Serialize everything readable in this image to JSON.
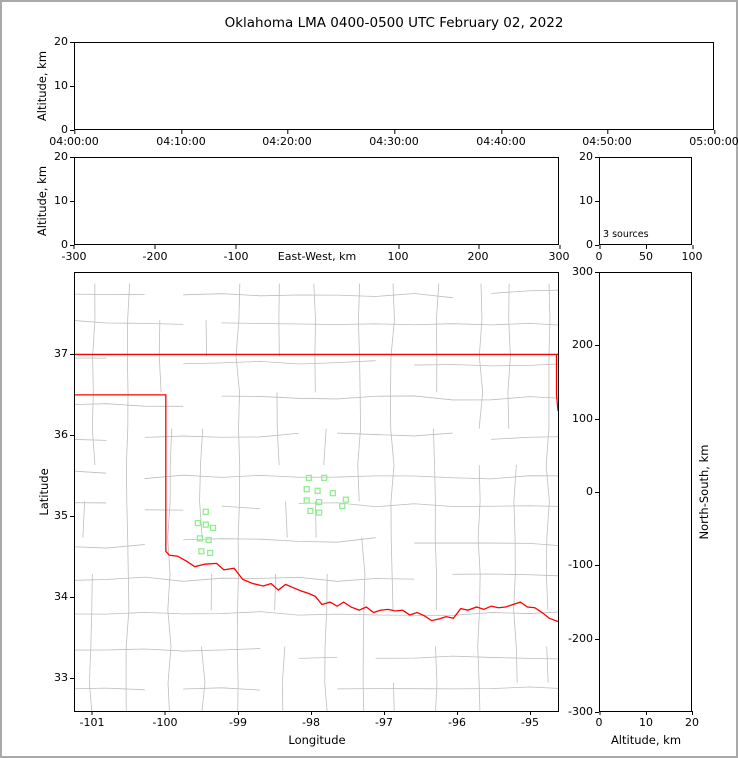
{
  "title": "Oklahoma LMA 0400-0500 UTC February 02, 2022",
  "panels": {
    "time_height": {
      "ylabel": "Altitude, km",
      "yticks": [
        "20",
        "10",
        "0"
      ],
      "xticks": [
        "04:00:00",
        "04:10:00",
        "04:20:00",
        "04:30:00",
        "04:40:00",
        "04:50:00",
        "05:00:00"
      ]
    },
    "ew_height": {
      "ylabel": "Altitude, km",
      "yticks": [
        "20",
        "10",
        "0"
      ],
      "xlabel": "East-West, km",
      "xticks": [
        "-300",
        "-200",
        "-100",
        "100",
        "200",
        "300"
      ]
    },
    "histogram": {
      "yticks": [
        "20",
        "10",
        "0"
      ],
      "xticks": [
        "0",
        "50",
        "100"
      ],
      "annotation": "3 sources"
    },
    "map": {
      "ylabel": "Latitude",
      "xlabel": "Longitude",
      "yticks": [
        "37",
        "36",
        "35",
        "34",
        "33"
      ],
      "xticks": [
        "-101",
        "-100",
        "-99",
        "-98",
        "-97",
        "-96",
        "-95"
      ]
    },
    "ns_height": {
      "yticks": [
        "300",
        "200",
        "100",
        "0",
        "-100",
        "-200",
        "-300"
      ],
      "xlabel": "Altitude, km",
      "xticks": [
        "0",
        "10",
        "20"
      ],
      "right_label": "North-South, km"
    }
  },
  "colors": {
    "state_border": "#ff0000",
    "county_lines": "#bdbdbd",
    "station_marker": "#90EE90",
    "axes": "#000000"
  },
  "chart_data": {
    "type": "scatter",
    "title": "Oklahoma LMA 0400-0500 UTC February 02, 2022",
    "panels": [
      {
        "id": "time_height",
        "xlim": [
          "04:00:00",
          "05:00:00"
        ],
        "x_ticks": [
          "04:00:00",
          "04:10:00",
          "04:20:00",
          "04:30:00",
          "04:40:00",
          "04:50:00",
          "05:00:00"
        ],
        "ylabel": "Altitude, km",
        "ylim": [
          0,
          20
        ],
        "points": []
      },
      {
        "id": "ew_height",
        "xlabel": "East-West, km",
        "xlim": [
          -300,
          300
        ],
        "ylabel": "Altitude, km",
        "ylim": [
          0,
          20
        ],
        "points": []
      },
      {
        "id": "alt_histogram",
        "xlim": [
          0,
          100
        ],
        "ylim": [
          0,
          20
        ],
        "annotation": "3 sources",
        "points": []
      },
      {
        "id": "plan_map",
        "xlabel": "Longitude",
        "ylabel": "Latitude",
        "xlim": [
          -101.25,
          -94.6
        ],
        "ylim": [
          32.58,
          38.01
        ],
        "station_markers": {
          "marker": "open-square",
          "color": "#90EE90",
          "points": [
            [
              -98.03,
              35.47
            ],
            [
              -97.82,
              35.47
            ],
            [
              -98.06,
              35.33
            ],
            [
              -97.91,
              35.31
            ],
            [
              -97.7,
              35.28
            ],
            [
              -98.06,
              35.19
            ],
            [
              -97.89,
              35.17
            ],
            [
              -98.01,
              35.06
            ],
            [
              -97.89,
              35.04
            ],
            [
              -97.52,
              35.2
            ],
            [
              -97.57,
              35.12
            ],
            [
              -99.45,
              35.05
            ],
            [
              -99.56,
              34.91
            ],
            [
              -99.45,
              34.89
            ],
            [
              -99.35,
              34.85
            ],
            [
              -99.53,
              34.72
            ],
            [
              -99.41,
              34.7
            ],
            [
              -99.51,
              34.56
            ],
            [
              -99.39,
              34.54
            ]
          ]
        },
        "state_border": {
          "color": "#ff0000",
          "polylines": [
            [
              [
                -101.25,
                37.0
              ],
              [
                -94.6,
                37.0
              ]
            ],
            [
              [
                -94.62,
                37.0
              ],
              [
                -94.62,
                36.5
              ],
              [
                -94.6,
                36.3
              ]
            ],
            [
              [
                -101.25,
                36.5
              ],
              [
                -100.0,
                36.5
              ],
              [
                -100.0,
                34.56
              ],
              [
                -99.95,
                34.51
              ],
              [
                -99.84,
                34.5
              ],
              [
                -99.72,
                34.44
              ],
              [
                -99.6,
                34.37
              ],
              [
                -99.46,
                34.4
              ],
              [
                -99.3,
                34.41
              ],
              [
                -99.2,
                34.33
              ],
              [
                -99.06,
                34.35
              ],
              [
                -98.94,
                34.21
              ],
              [
                -98.8,
                34.16
              ],
              [
                -98.66,
                34.13
              ],
              [
                -98.55,
                34.16
              ],
              [
                -98.45,
                34.08
              ],
              [
                -98.35,
                34.15
              ],
              [
                -98.25,
                34.11
              ],
              [
                -98.14,
                34.07
              ],
              [
                -98.04,
                34.04
              ],
              [
                -97.94,
                34.0
              ],
              [
                -97.85,
                33.9
              ],
              [
                -97.74,
                33.93
              ],
              [
                -97.64,
                33.88
              ],
              [
                -97.55,
                33.93
              ],
              [
                -97.45,
                33.87
              ],
              [
                -97.34,
                33.83
              ],
              [
                -97.24,
                33.87
              ],
              [
                -97.14,
                33.8
              ],
              [
                -97.04,
                33.83
              ],
              [
                -96.94,
                33.84
              ],
              [
                -96.84,
                33.82
              ],
              [
                -96.74,
                33.83
              ],
              [
                -96.64,
                33.77
              ],
              [
                -96.54,
                33.8
              ],
              [
                -96.44,
                33.76
              ],
              [
                -96.34,
                33.7
              ],
              [
                -96.24,
                33.72
              ],
              [
                -96.14,
                33.75
              ],
              [
                -96.04,
                33.73
              ],
              [
                -95.94,
                33.85
              ],
              [
                -95.84,
                33.83
              ],
              [
                -95.72,
                33.87
              ],
              [
                -95.62,
                33.84
              ],
              [
                -95.52,
                33.88
              ],
              [
                -95.42,
                33.86
              ],
              [
                -95.32,
                33.87
              ],
              [
                -95.22,
                33.9
              ],
              [
                -95.12,
                33.93
              ],
              [
                -95.02,
                33.87
              ],
              [
                -94.92,
                33.86
              ],
              [
                -94.82,
                33.8
              ],
              [
                -94.72,
                33.73
              ],
              [
                -94.6,
                33.69
              ]
            ]
          ]
        },
        "counties": {
          "color": "#bdbdbd",
          "render": "procedural-grid",
          "seed": 20220202,
          "lon_start": -101.05,
          "lon_step": 0.53,
          "lat_start": 32.85,
          "lat_step": 0.45
        }
      },
      {
        "id": "ns_height",
        "xlabel": "Altitude, km",
        "xlim": [
          0,
          20
        ],
        "ylabel_right": "North-South, km",
        "ylim": [
          -300,
          300
        ],
        "points": []
      }
    ]
  }
}
